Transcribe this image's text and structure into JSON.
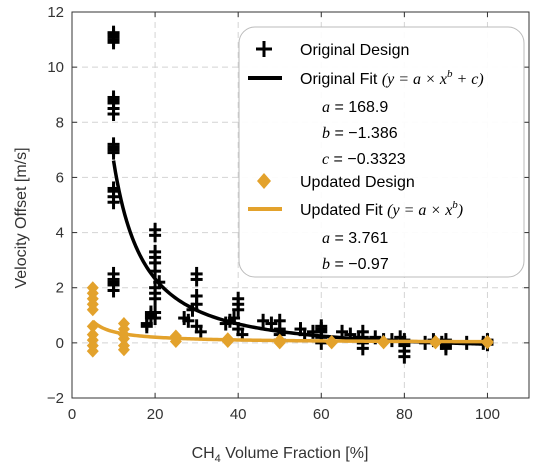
{
  "chart_data": {
    "type": "scatter",
    "xlabel_prefix": "CH",
    "xlabel_sub": "4",
    "xlabel_suffix": " Volume Fraction [%]",
    "ylabel": "Velocity Offset [m/s]",
    "xlim": [
      0,
      110
    ],
    "ylim": [
      -2,
      12
    ],
    "xticks": [
      0,
      20,
      40,
      60,
      80,
      100
    ],
    "yticks": [
      -2,
      0,
      2,
      4,
      6,
      8,
      10,
      12
    ],
    "grid": true,
    "legend_position": "top-right",
    "colors": {
      "original": "#000000",
      "updated": "#e3a22c",
      "grid": "#d4d4d4",
      "axis": "#333333"
    },
    "series": [
      {
        "name": "Original Design",
        "marker": "plus",
        "points": [
          [
            10,
            11.2
          ],
          [
            10,
            11.1
          ],
          [
            10,
            11.0
          ],
          [
            10,
            10.9
          ],
          [
            10,
            11.25
          ],
          [
            10,
            8.9
          ],
          [
            10,
            8.7
          ],
          [
            10,
            8.5
          ],
          [
            10,
            8.3
          ],
          [
            10,
            8.8
          ],
          [
            10,
            7.2
          ],
          [
            10,
            7.0
          ],
          [
            10,
            6.9
          ],
          [
            10,
            7.1
          ],
          [
            10,
            5.6
          ],
          [
            10,
            5.3
          ],
          [
            10,
            5.1
          ],
          [
            10,
            5.5
          ],
          [
            10,
            2.5
          ],
          [
            10,
            2.3
          ],
          [
            10,
            2.1
          ],
          [
            10,
            1.9
          ],
          [
            10,
            2.2
          ],
          [
            18,
            0.7
          ],
          [
            18,
            0.6
          ],
          [
            19,
            1.0
          ],
          [
            19,
            0.9
          ],
          [
            19,
            1.1
          ],
          [
            20,
            4.1
          ],
          [
            20,
            3.9
          ],
          [
            20,
            3.3
          ],
          [
            20,
            3.1
          ],
          [
            20,
            2.9
          ],
          [
            20,
            2.6
          ],
          [
            20,
            2.0
          ],
          [
            20,
            1.8
          ],
          [
            20,
            1.6
          ],
          [
            20,
            1.1
          ],
          [
            20,
            0.9
          ],
          [
            21,
            2.2
          ],
          [
            27,
            0.9
          ],
          [
            28,
            0.8
          ],
          [
            29,
            1.2
          ],
          [
            30,
            1.7
          ],
          [
            30,
            1.4
          ],
          [
            30,
            2.3
          ],
          [
            30,
            2.5
          ],
          [
            30,
            0.6
          ],
          [
            31,
            0.4
          ],
          [
            37,
            0.7
          ],
          [
            38,
            0.8
          ],
          [
            39,
            0.9
          ],
          [
            40,
            1.4
          ],
          [
            40,
            1.2
          ],
          [
            40,
            1.6
          ],
          [
            40,
            0.5
          ],
          [
            41,
            0.3
          ],
          [
            46,
            0.8
          ],
          [
            48,
            0.7
          ],
          [
            50,
            0.8
          ],
          [
            50,
            0.5
          ],
          [
            50,
            0.3
          ],
          [
            50,
            0.1
          ],
          [
            55,
            0.5
          ],
          [
            56,
            0.3
          ],
          [
            58,
            0.4
          ],
          [
            60,
            0.6
          ],
          [
            60,
            0.4
          ],
          [
            60,
            0.2
          ],
          [
            60,
            0.0
          ],
          [
            60,
            0.5
          ],
          [
            65,
            0.4
          ],
          [
            67,
            0.3
          ],
          [
            69,
            0.2
          ],
          [
            70,
            0.4
          ],
          [
            70,
            0.2
          ],
          [
            70,
            0.0
          ],
          [
            70,
            -0.2
          ],
          [
            73,
            0.2
          ],
          [
            75,
            0.1
          ],
          [
            77,
            0.1
          ],
          [
            79,
            0.2
          ],
          [
            80,
            0.1
          ],
          [
            80,
            -0.1
          ],
          [
            80,
            -0.3
          ],
          [
            80,
            -0.5
          ],
          [
            80,
            0.0
          ],
          [
            85,
            0.0
          ],
          [
            87,
            0.1
          ],
          [
            89,
            0.0
          ],
          [
            90,
            0.1
          ],
          [
            90,
            -0.1
          ],
          [
            90,
            -0.2
          ],
          [
            95,
            0.0
          ],
          [
            99,
            0.0
          ],
          [
            100,
            0.1
          ],
          [
            100,
            -0.05
          ],
          [
            100,
            0.05
          ]
        ]
      },
      {
        "name": "Updated Design",
        "marker": "diamond",
        "points": [
          [
            5,
            2.0
          ],
          [
            5,
            1.8
          ],
          [
            5,
            1.6
          ],
          [
            5,
            1.4
          ],
          [
            5,
            1.2
          ],
          [
            5,
            0.3
          ],
          [
            5,
            0.1
          ],
          [
            5,
            -0.1
          ],
          [
            5,
            -0.3
          ],
          [
            5,
            0.6
          ],
          [
            12.5,
            0.7
          ],
          [
            12.5,
            0.5
          ],
          [
            12.5,
            0.3
          ],
          [
            12.5,
            0.15
          ],
          [
            12.5,
            -0.1
          ],
          [
            12.5,
            -0.25
          ],
          [
            25,
            0.25
          ],
          [
            25,
            0.05
          ],
          [
            37.5,
            0.15
          ],
          [
            37.5,
            0.05
          ],
          [
            50,
            0.1
          ],
          [
            50,
            0.0
          ],
          [
            62.5,
            0.05
          ],
          [
            62.5,
            0.0
          ],
          [
            75,
            0.05
          ],
          [
            75,
            0.0
          ],
          [
            87.5,
            0.05
          ],
          [
            87.5,
            0.0
          ],
          [
            100,
            0.0
          ],
          [
            100,
            0.05
          ]
        ]
      }
    ],
    "fits": [
      {
        "name": "Original Fit",
        "a": 168.9,
        "b": -1.386,
        "c": -0.3323,
        "x_start": 10,
        "x_end": 100
      },
      {
        "name": "Updated Fit",
        "a": 3.761,
        "b": -0.97,
        "c": 0,
        "x_start": 5,
        "x_end": 100
      }
    ],
    "legend": {
      "original_design": "Original Design",
      "original_fit": "Original Fit",
      "original_fit_eq": "(y = a × x",
      "original_fit_exp": "b",
      "original_fit_tail": " + c)",
      "orig_a_label": "a",
      "orig_a_value": " = 168.9",
      "orig_b_label": "b",
      "orig_b_value": " = −1.386",
      "orig_c_label": "c",
      "orig_c_value": " = −0.3323",
      "updated_design": "Updated Design",
      "updated_fit": "Updated Fit",
      "updated_fit_eq": "(y = a × x",
      "updated_fit_exp": "b",
      "updated_fit_tail": ")",
      "upd_a_label": "a",
      "upd_a_value": " = 3.761",
      "upd_b_label": "b",
      "upd_b_value": " = −0.97"
    }
  }
}
